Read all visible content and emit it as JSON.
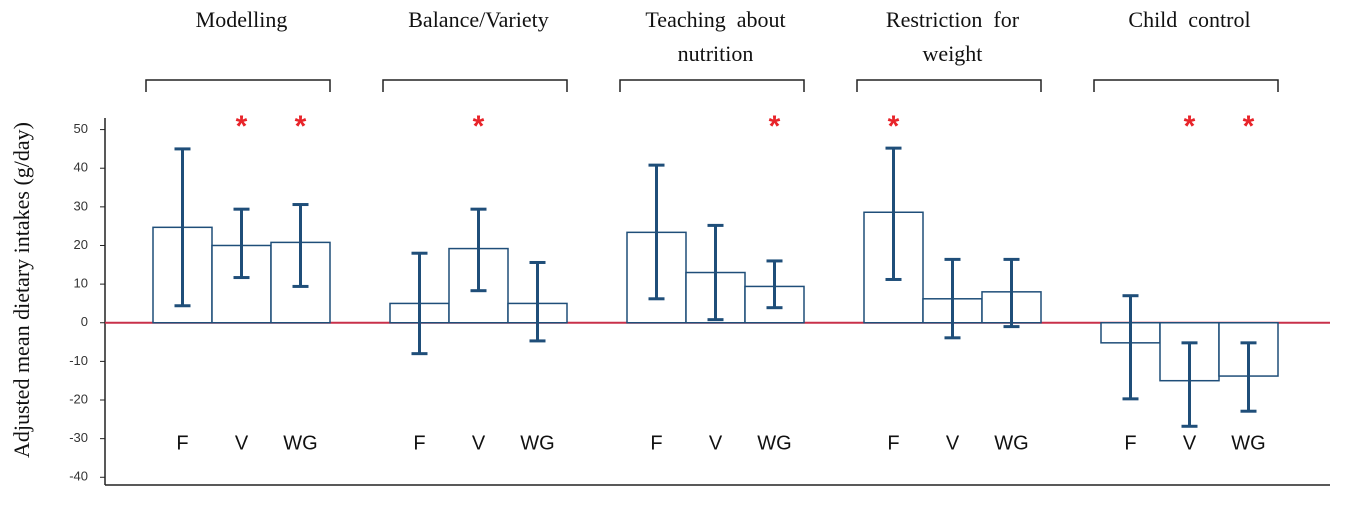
{
  "chart_data": {
    "type": "bar",
    "y_label": "Adjusted mean dietary intakes (g/day)",
    "categories": [
      [
        "Modelling"
      ],
      [
        "Balance/Variety"
      ],
      [
        "Teaching  about",
        "nutrition"
      ],
      [
        "Restriction  for",
        "weight"
      ],
      [
        "Child  control"
      ]
    ],
    "series": [
      {
        "name": "F",
        "color": "#1f4e79",
        "values": [
          24.7,
          5,
          23.4,
          28.6,
          -5.2
        ],
        "ci_low": [
          4.4,
          -8,
          6.2,
          11.2,
          -19.7
        ],
        "ci_high": [
          45,
          18,
          40.8,
          45.2,
          7
        ]
      },
      {
        "name": "V",
        "color": "#1f4e79",
        "values": [
          20,
          19.2,
          13,
          6.2,
          -15
        ],
        "ci_low": [
          11.7,
          8.3,
          0.8,
          -3.9,
          -26.8
        ],
        "ci_high": [
          29.4,
          29.4,
          25.2,
          16.4,
          -5.2
        ]
      },
      {
        "name": "WG",
        "color": "#1f4e79",
        "values": [
          20.8,
          5,
          9.4,
          8,
          -13.8
        ],
        "ci_low": [
          9.4,
          -4.7,
          3.9,
          -1,
          -22.9
        ],
        "ci_high": [
          30.6,
          15.6,
          16,
          16.4,
          -5.2
        ]
      }
    ],
    "significance_marker": "*",
    "significant": [
      [
        false,
        true,
        true
      ],
      [
        false,
        true,
        false
      ],
      [
        false,
        false,
        true
      ],
      [
        true,
        false,
        false
      ],
      [
        false,
        true,
        true
      ]
    ],
    "zero_line_color": "#c8304a",
    "ylim": [
      -42,
      53
    ],
    "yticks": [
      -40,
      -30,
      -20,
      -10,
      0,
      10,
      20,
      30,
      40,
      50
    ]
  }
}
